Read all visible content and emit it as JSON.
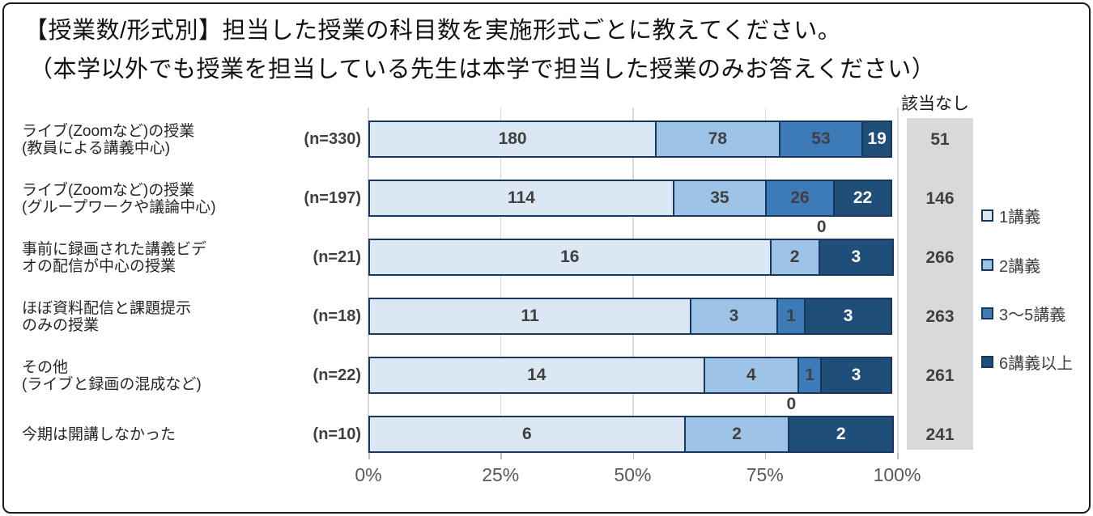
{
  "title": {
    "line1": "【授業数/形式別】担当した授業の科目数を実施形式ごとに教えてください。",
    "line2": "（本学以外でも授業を担当している先生は本学で担当した授業のみお答えください）"
  },
  "nashi_column": {
    "header": "該当なし",
    "background": "#d9d9d9"
  },
  "colors": {
    "segment_border": "#17375e",
    "gridline": "#d9d9d9",
    "value_text": "#404040",
    "axis_text": "#595959"
  },
  "chart_data": {
    "type": "bar",
    "orientation": "horizontal",
    "stacked": true,
    "x_axis": {
      "ticks": [
        "0%",
        "25%",
        "50%",
        "75%",
        "100%"
      ],
      "range_percent": [
        0,
        100
      ],
      "grid": true
    },
    "legend": {
      "position": "right",
      "entries": [
        "1講義",
        "2講義",
        "3〜5講義",
        "6講義以上"
      ]
    },
    "series_colors": [
      "#dbe7f3",
      "#9dc3e6",
      "#3d7ab8",
      "#1f4e79"
    ],
    "rows": [
      {
        "label_lines": [
          "ライブ(Zoomなど)の授業",
          "(教員による講義中心)"
        ],
        "n_label": "(n=330)",
        "values": [
          180,
          78,
          53,
          19
        ],
        "nashi": 51
      },
      {
        "label_lines": [
          "ライブ(Zoomなど)の授業",
          "(グループワークや議論中心)"
        ],
        "n_label": "(n=197)",
        "values": [
          114,
          35,
          26,
          22
        ],
        "nashi": 146
      },
      {
        "label_lines": [
          "事前に録画された講義ビデ",
          "オの配信が中心の授業"
        ],
        "n_label": "(n=21)",
        "values": [
          16,
          2,
          0,
          3
        ],
        "nashi": 266
      },
      {
        "label_lines": [
          "ほぼ資料配信と課題提示",
          "のみの授業"
        ],
        "n_label": "(n=18)",
        "values": [
          11,
          3,
          1,
          3
        ],
        "nashi": 263
      },
      {
        "label_lines": [
          "その他",
          "(ライブと録画の混成など)"
        ],
        "n_label": "(n=22)",
        "values": [
          14,
          4,
          1,
          3
        ],
        "nashi": 261
      },
      {
        "label_lines": [
          "今期は開講しなかった"
        ],
        "n_label": "(n=10)",
        "values": [
          6,
          2,
          0,
          2
        ],
        "nashi": 241
      }
    ]
  }
}
